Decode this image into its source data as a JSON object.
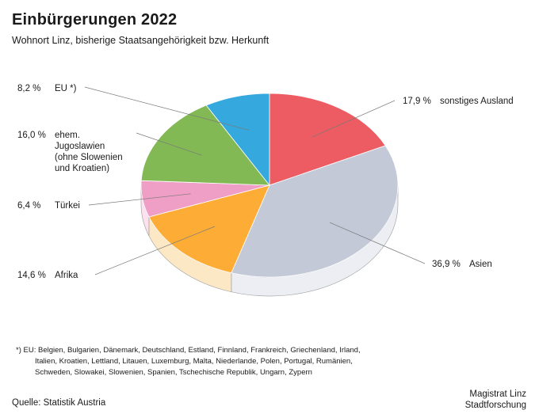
{
  "title": "Einbürgerungen 2022",
  "subtitle": "Wohnort Linz, bisherige Staatsangehörigkeit bzw. Herkunft",
  "chart_data": {
    "type": "pie",
    "title": "Einbürgerungen 2022",
    "subtitle": "Wohnort Linz, bisherige Staatsangehörigkeit bzw. Herkunft",
    "unit": "%",
    "slices": [
      {
        "label": "sonstiges Ausland",
        "value": 17.9,
        "value_text": "17,9 %",
        "color": "#ec5c62",
        "side_color": "#f8d4d5"
      },
      {
        "label": "Asien",
        "value": 36.9,
        "value_text": "36,9 %",
        "color": "#c4c9d8",
        "side_color": "#eceef3"
      },
      {
        "label": "Afrika",
        "value": 14.6,
        "value_text": "14,6 %",
        "color": "#fdad35",
        "side_color": "#fde8c6"
      },
      {
        "label": "Türkei",
        "value": 6.4,
        "value_text": "6,4 %",
        "color": "#ef9ec6",
        "side_color": "#fbe2ee"
      },
      {
        "label": "ehem. Jugoslawien (ohne Slowenien und Kroatien)",
        "label_lines": [
          "ehem.",
          "Jugoslawien",
          "(ohne Slowenien",
          "und Kroatien)"
        ],
        "value": 16.0,
        "value_text": "16,0 %",
        "color": "#82b954",
        "side_color": "#dcedcc"
      },
      {
        "label": "EU *)",
        "value": 8.2,
        "value_text": "8,2 %",
        "color": "#35a8de",
        "side_color": "#cde8f6"
      }
    ]
  },
  "footnote": {
    "marker": "*) EU:",
    "lines": [
      "Belgien, Bulgarien, Dänemark, Deutschland, Estland, Finnland, Frankreich, Griechenland, Irland,",
      "Italien, Kroatien, Lettland, Litauen, Luxemburg, Malta, Niederlande, Polen, Portugal, Rumänien,",
      "Schweden, Slowakei, Slowenien, Spanien, Tschechische Republik, Ungarn, Zypern"
    ]
  },
  "source": "Quelle: Statistik Austria",
  "credit": [
    "Magistrat Linz",
    "Stadtforschung"
  ]
}
